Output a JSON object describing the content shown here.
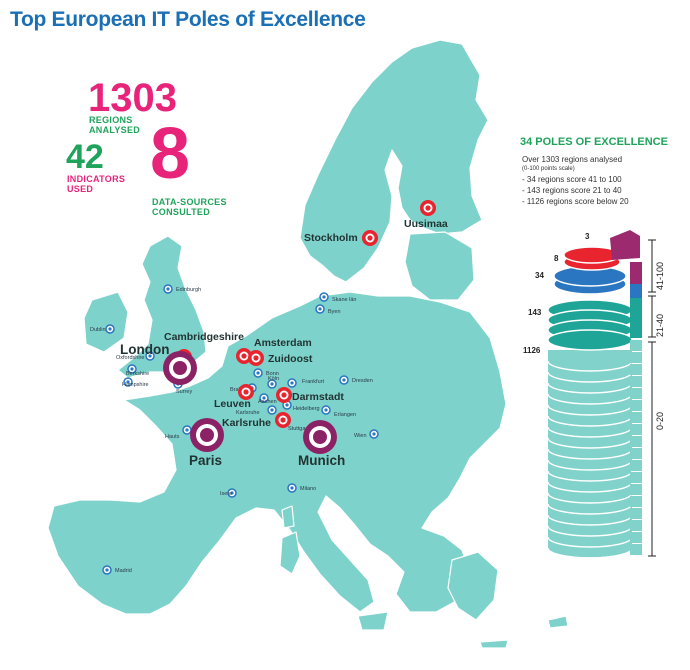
{
  "title": "Top European IT Poles of Excellence",
  "stats": {
    "regions_value": "1303",
    "regions_label_1": "REGIONS",
    "regions_label_2": "ANALYSED",
    "indicators_value": "42",
    "indicators_label_1": "INDICATORS",
    "indicators_label_2": "USED",
    "sources_value": "8",
    "sources_label_1": "DATA-SOURCES",
    "sources_label_2": "CONSULTED"
  },
  "poles_panel": {
    "heading": "34 POLES OF EXCELLENCE",
    "line1": "Over 1303 regions analysed",
    "line2": "(0-100 points scale)",
    "line3": "- 34 regions score 41 to 100",
    "line4": "- 143 regions score 21 to 40",
    "line5": "- 1126 regions score below 20"
  },
  "stack_chart": {
    "labels": [
      "3",
      "8",
      "34",
      "143",
      "1126"
    ],
    "axis": [
      "41-100",
      "21-40",
      "0-20"
    ],
    "colors": [
      "#9b2a6f",
      "#e8242e",
      "#2b76c0",
      "#1fa598",
      "#80d2ca"
    ]
  },
  "colors": {
    "land": "#7dd3cb",
    "land_edge": "#ffffff",
    "outside": "#d8d8d8",
    "major": "#8c2266",
    "red": "#e8242e",
    "blue": "#2b76c0"
  },
  "map_labels": {
    "london": "London",
    "paris": "Paris",
    "munich": "Munich",
    "cambridgeshire": "Cambridgeshire",
    "amsterdam": "Amsterdam",
    "zuidoost": "Zuidoost",
    "leuven": "Leuven",
    "darmstadt": "Darmstadt",
    "karlsruhe": "Karlsruhe",
    "stockholm": "Stockholm",
    "uusimaa": "Uusimaa",
    "edinburgh": "Edinburgh",
    "dublin": "Dublin",
    "oxfordshire": "Oxfordshire",
    "berkshire": "Berkshire",
    "hampshire": "Hampshire",
    "surrey": "Surrey",
    "bonn": "Bonn",
    "frankfurt": "Frankfurt",
    "dresden": "Dresden",
    "heidelberg": "Heidelberg",
    "erlangen": "Erlangen",
    "stuttgart": "Stuttgart",
    "hauts": "Hauts",
    "isere": "Isere",
    "milano": "Milano",
    "madrid": "Madrid",
    "wien": "Wien",
    "byen": "Byen",
    "skane": "Skane län",
    "brabant": "Brabant",
    "aachen": "Aachen",
    "karlsruhe_small": "Karlsruhe",
    "koln": "Köln"
  }
}
